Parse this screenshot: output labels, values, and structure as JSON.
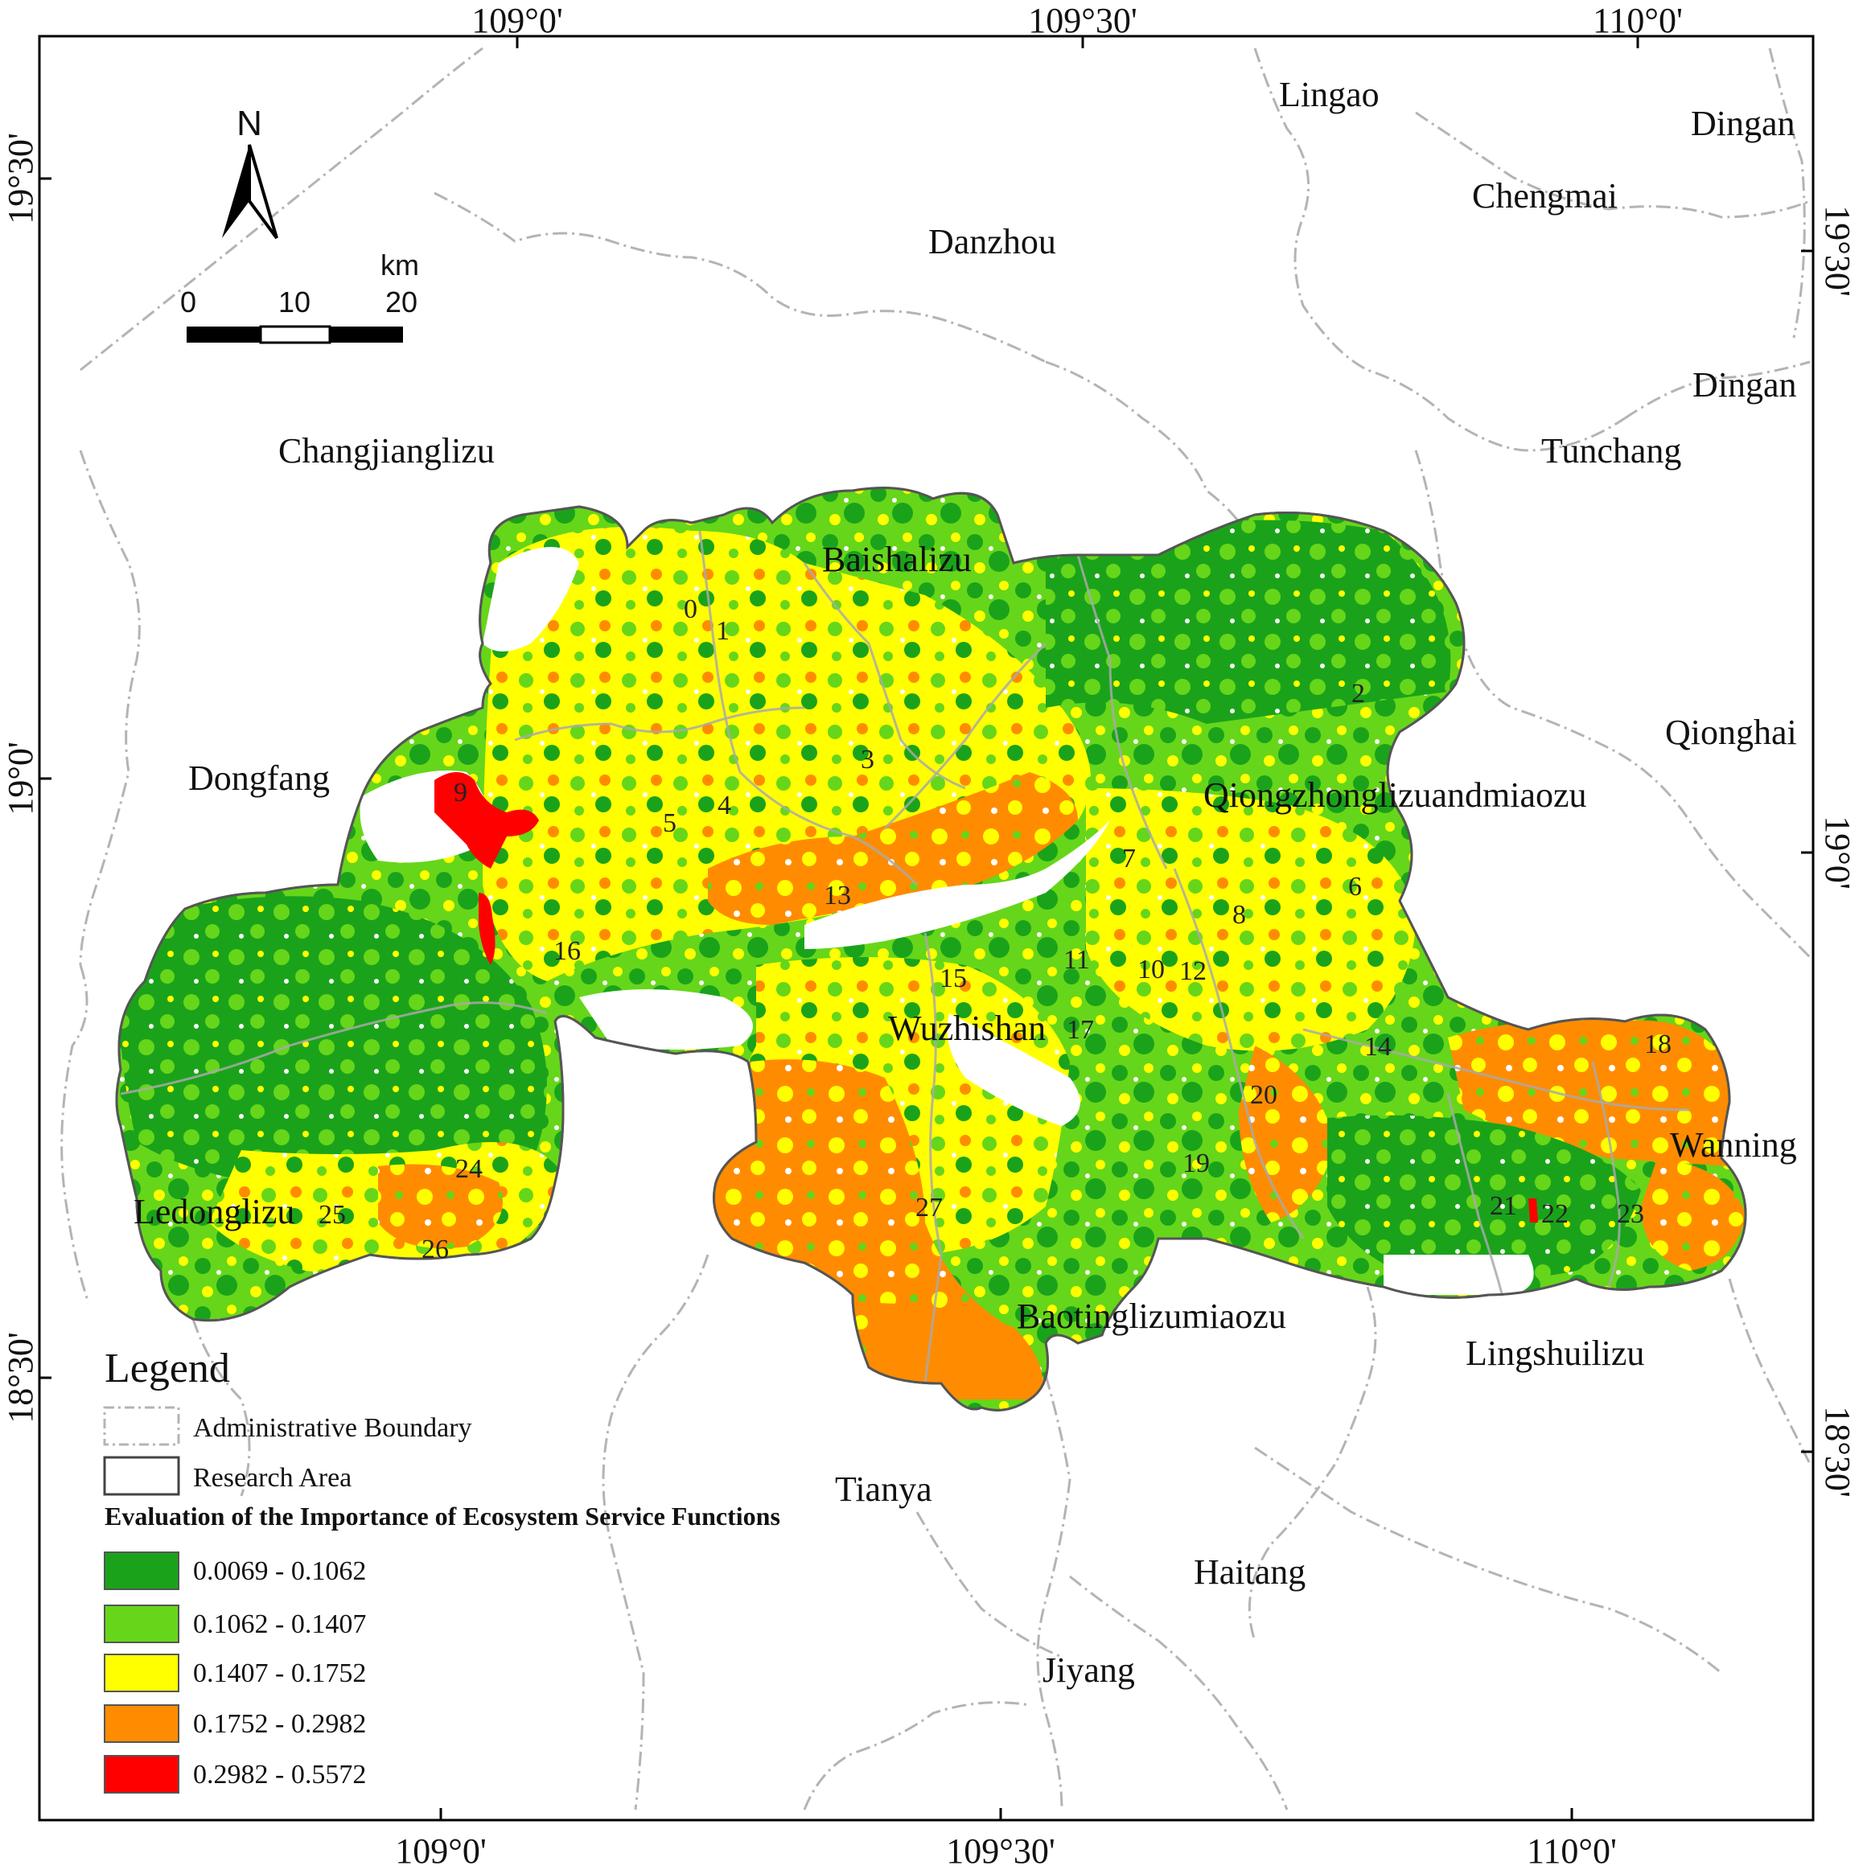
{
  "coordinates": {
    "top": [
      "109°0'",
      "109°30'",
      "110°0'"
    ],
    "bottom": [
      "109°0'",
      "109°30'",
      "110°0'"
    ],
    "left": [
      "19°30'",
      "19°0'",
      "18°30'"
    ],
    "right": [
      "19°30'",
      "19°0'",
      "18°30'"
    ]
  },
  "north_arrow": {
    "label": "N",
    "icon": "north-arrow-icon"
  },
  "scale_bar": {
    "unit": "km",
    "ticks": [
      "0",
      "10",
      "20"
    ]
  },
  "places": {
    "lingao": "Lingao",
    "dingan_1": "Dingan",
    "chengmai": "Chengmai",
    "danzhou": "Danzhou",
    "dingan_2": "Dingan",
    "changjianglizu": "Changjianglizu",
    "tunchang": "Tunchang",
    "baishalizu": "Baishalizu",
    "qionghai": "Qionghai",
    "dongfang": "Dongfang",
    "qiongzhong": "Qiongzhonglizuandmiaozu",
    "wuzhishan": "Wuzhishan",
    "wanning": "Wanning",
    "ledonglizu": "Ledonglizu",
    "baoting": "Baotinglizumiaozu",
    "lingshuilizu": "Lingshuilizu",
    "tianya": "Tianya",
    "haitang": "Haitang",
    "jiyang": "Jiyang"
  },
  "zone_labels": [
    "0",
    "1",
    "2",
    "3",
    "4",
    "5",
    "6",
    "7",
    "8",
    "9",
    "10",
    "11",
    "12",
    "13",
    "14",
    "15",
    "16",
    "17",
    "18",
    "19",
    "20",
    "21",
    "22",
    "23",
    "24",
    "25",
    "26",
    "27"
  ],
  "legend": {
    "title": "Legend",
    "admin_label": "Administrative Boundary",
    "research_label": "Research Area",
    "class_title": "Evaluation of the Importance of Ecosystem Service Functions",
    "classes": [
      {
        "range": "0.0069 - 0.1062",
        "color": "#1aa31a"
      },
      {
        "range": "0.1062 - 0.1407",
        "color": "#66d61a"
      },
      {
        "range": "0.1407 - 0.1752",
        "color": "#ffff00"
      },
      {
        "range": "0.1752 - 0.2982",
        "color": "#ff8c00"
      },
      {
        "range": "0.2982 - 0.5572",
        "color": "#ff0000"
      }
    ]
  }
}
